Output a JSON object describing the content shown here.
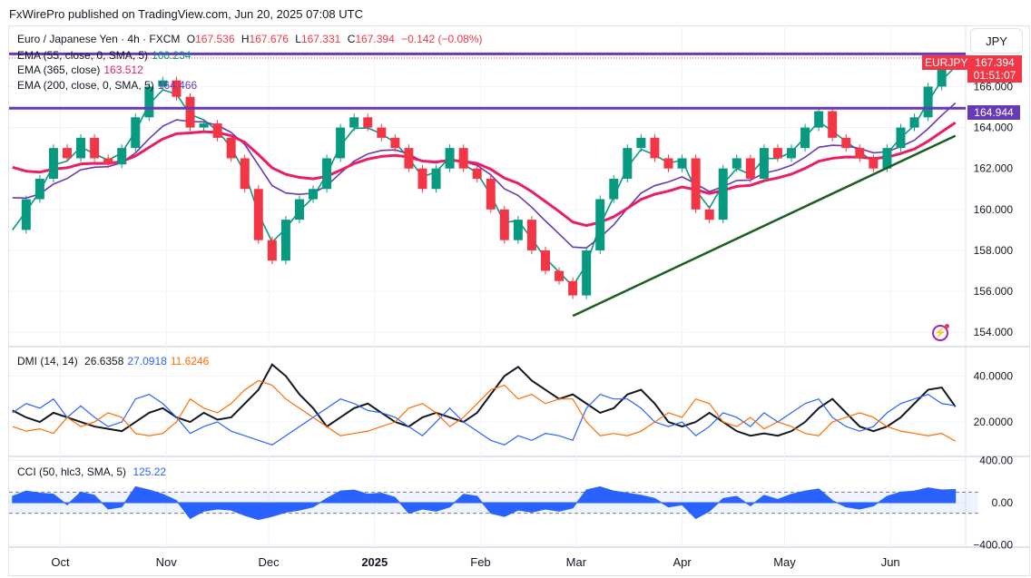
{
  "publisher_line": "FxWirePro published on TradingView.com, Jun 20, 2025 07:08 UTC",
  "currency_button": "JPY",
  "legend": {
    "symbol": "Euro / Japanese Yen · 4h · FXCM",
    "o_label": "O",
    "o": "167.536",
    "h_label": "H",
    "h": "167.676",
    "l_label": "L",
    "l": "167.331",
    "c_label": "C",
    "c": "167.394",
    "change": "−0.142 (−0.08%)",
    "ema55": {
      "label": "EMA (55, close, 0, SMA, 5)",
      "value": "166.234"
    },
    "ema365": {
      "label": "EMA (365, close)",
      "value": "163.512"
    },
    "ema200": {
      "label": "EMA (200, close, 0, SMA, 5)",
      "value": "164.466"
    },
    "dmi": {
      "label": "DMI (14, 14)",
      "adx": "26.6358",
      "plus": "27.0918",
      "minus": "11.6246"
    },
    "cci": {
      "label": "CCI (50, hlc3, SMA, 5)",
      "value": "125.22"
    }
  },
  "price_tag": {
    "symbol": "EURJPY",
    "price": "167.394",
    "countdown": "01:51:07"
  },
  "level_tag": "164.944",
  "colors": {
    "up": "#089981",
    "down": "#f23645",
    "ema55": "#089981",
    "ema200": "#673ab7",
    "ema365": "#e91e63",
    "hline": "#673ab7",
    "trendline": "#1b5e20",
    "adx": "#131722",
    "plus_di": "#2962ff",
    "minus_di": "#ff6d00",
    "cci": "#2962ff"
  },
  "chart_data": {
    "type": "candlestick",
    "time_ticks": [
      "Oct",
      "Nov",
      "Dec",
      "2025",
      "Feb",
      "Mar",
      "Apr",
      "May",
      "Jun"
    ],
    "price_ticks": [
      "166.000",
      "164.000",
      "162.000",
      "160.000",
      "158.000",
      "156.000",
      "154.000"
    ],
    "dmi_ticks": [
      "40.0000",
      "20.0000"
    ],
    "cci_ticks": [
      "400.00",
      "0.00",
      "−400.00"
    ],
    "ylim_price": [
      153.3,
      168.9
    ],
    "ylim_dmi": [
      5,
      52
    ],
    "ylim_cci": [
      -420,
      420
    ],
    "cci_band": [
      -100,
      100
    ],
    "horizontal_levels": [
      167.6,
      164.944
    ],
    "trendline": [
      [
        "2025-02-28",
        154.8
      ],
      [
        "2025-06-20",
        163.6
      ]
    ],
    "columns": [
      "date",
      "close",
      "cci",
      "adx",
      "plus_di",
      "minus_di"
    ],
    "rows": [
      [
        "2024-09-17",
        159.0,
        60,
        25,
        24,
        18
      ],
      [
        "2024-09-21",
        160.5,
        110,
        22,
        28,
        16
      ],
      [
        "2024-09-25",
        161.5,
        90,
        20,
        26,
        17
      ],
      [
        "2024-09-29",
        163.0,
        80,
        24,
        30,
        15
      ],
      [
        "2024-10-03",
        162.5,
        -20,
        22,
        22,
        22
      ],
      [
        "2024-10-07",
        163.5,
        100,
        20,
        27,
        18
      ],
      [
        "2024-10-11",
        162.5,
        70,
        18,
        22,
        20
      ],
      [
        "2024-10-15",
        162.2,
        -60,
        17,
        18,
        24
      ],
      [
        "2024-10-19",
        163.0,
        -40,
        16,
        20,
        22
      ],
      [
        "2024-10-23",
        164.5,
        150,
        20,
        30,
        15
      ],
      [
        "2024-10-27",
        166.0,
        120,
        24,
        32,
        14
      ],
      [
        "2024-10-31",
        166.3,
        80,
        26,
        28,
        15
      ],
      [
        "2024-11-04",
        165.5,
        20,
        22,
        22,
        20
      ],
      [
        "2024-11-08",
        164.0,
        -150,
        20,
        15,
        30
      ],
      [
        "2024-11-12",
        164.2,
        -80,
        24,
        18,
        26
      ],
      [
        "2024-11-16",
        163.5,
        -60,
        21,
        20,
        24
      ],
      [
        "2024-11-20",
        162.5,
        -70,
        22,
        16,
        28
      ],
      [
        "2024-11-24",
        161.0,
        -120,
        28,
        14,
        34
      ],
      [
        "2024-11-28",
        158.5,
        -160,
        34,
        12,
        38
      ],
      [
        "2024-12-02",
        157.5,
        -130,
        45,
        10,
        36
      ],
      [
        "2024-12-06",
        159.5,
        -90,
        40,
        14,
        30
      ],
      [
        "2024-12-10",
        160.5,
        -70,
        32,
        18,
        26
      ],
      [
        "2024-12-14",
        161.0,
        -40,
        26,
        22,
        22
      ],
      [
        "2024-12-18",
        162.5,
        40,
        18,
        26,
        18
      ],
      [
        "2024-12-22",
        164.0,
        110,
        22,
        30,
        14
      ],
      [
        "2024-12-26",
        164.5,
        120,
        26,
        28,
        15
      ],
      [
        "2024-12-30",
        164.0,
        80,
        28,
        25,
        16
      ],
      [
        "2025-01-03",
        163.5,
        90,
        24,
        24,
        18
      ],
      [
        "2025-01-07",
        163.0,
        50,
        20,
        22,
        20
      ],
      [
        "2025-01-11",
        162.0,
        -100,
        18,
        18,
        26
      ],
      [
        "2025-01-15",
        161.0,
        -60,
        22,
        14,
        28
      ],
      [
        "2025-01-19",
        162.0,
        -80,
        24,
        20,
        24
      ],
      [
        "2025-01-23",
        163.0,
        -40,
        22,
        26,
        18
      ],
      [
        "2025-01-27",
        162.0,
        80,
        20,
        20,
        22
      ],
      [
        "2025-01-31",
        161.5,
        60,
        24,
        16,
        28
      ],
      [
        "2025-02-04",
        160.0,
        -100,
        32,
        12,
        34
      ],
      [
        "2025-02-08",
        158.5,
        -130,
        40,
        10,
        36
      ],
      [
        "2025-02-12",
        159.5,
        -70,
        44,
        14,
        30
      ],
      [
        "2025-02-16",
        158.0,
        -90,
        38,
        12,
        32
      ],
      [
        "2025-02-20",
        157.0,
        -60,
        34,
        15,
        28
      ],
      [
        "2025-02-24",
        156.5,
        -80,
        30,
        14,
        30
      ],
      [
        "2025-02-28",
        155.8,
        -50,
        32,
        12,
        30
      ],
      [
        "2025-03-04",
        158.0,
        120,
        28,
        26,
        20
      ],
      [
        "2025-03-08",
        160.5,
        150,
        24,
        32,
        14
      ],
      [
        "2025-03-12",
        161.5,
        110,
        26,
        30,
        15
      ],
      [
        "2025-03-16",
        163.0,
        90,
        32,
        30,
        14
      ],
      [
        "2025-03-20",
        163.5,
        70,
        34,
        26,
        16
      ],
      [
        "2025-03-24",
        162.5,
        40,
        28,
        20,
        20
      ],
      [
        "2025-03-28",
        162.0,
        -40,
        20,
        18,
        24
      ],
      [
        "2025-04-01",
        162.5,
        -20,
        18,
        20,
        22
      ],
      [
        "2025-04-05",
        160.0,
        -150,
        20,
        14,
        30
      ],
      [
        "2025-04-09",
        159.5,
        -80,
        24,
        18,
        28
      ],
      [
        "2025-04-13",
        162.0,
        40,
        20,
        24,
        20
      ],
      [
        "2025-04-17",
        162.5,
        60,
        16,
        22,
        18
      ],
      [
        "2025-04-21",
        161.5,
        -30,
        14,
        18,
        22
      ],
      [
        "2025-04-25",
        163.0,
        70,
        15,
        24,
        17
      ],
      [
        "2025-04-29",
        162.5,
        30,
        14,
        20,
        20
      ],
      [
        "2025-05-03",
        163.0,
        80,
        16,
        24,
        18
      ],
      [
        "2025-05-07",
        164.0,
        110,
        20,
        28,
        15
      ],
      [
        "2025-05-11",
        164.8,
        130,
        26,
        30,
        14
      ],
      [
        "2025-05-15",
        163.5,
        20,
        30,
        22,
        20
      ],
      [
        "2025-05-19",
        163.0,
        -40,
        24,
        18,
        22
      ],
      [
        "2025-05-23",
        162.5,
        -60,
        18,
        16,
        24
      ],
      [
        "2025-05-27",
        162.0,
        -30,
        16,
        18,
        22
      ],
      [
        "2025-05-31",
        163.0,
        60,
        18,
        24,
        18
      ],
      [
        "2025-06-04",
        164.0,
        100,
        22,
        28,
        16
      ],
      [
        "2025-06-08",
        164.5,
        110,
        28,
        30,
        15
      ],
      [
        "2025-06-12",
        166.0,
        140,
        34,
        32,
        14
      ],
      [
        "2025-06-16",
        167.0,
        120,
        35,
        28,
        15
      ],
      [
        "2025-06-20",
        167.394,
        125.22,
        26.6358,
        27.0918,
        11.6246
      ]
    ]
  }
}
